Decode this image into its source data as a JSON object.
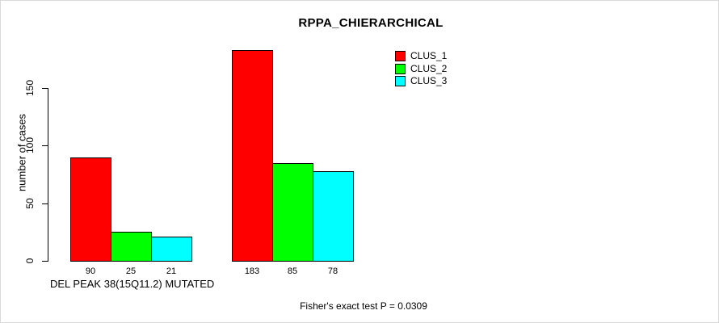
{
  "chart_data": {
    "type": "bar",
    "title": "RPPA_CHIERARCHICAL",
    "ylabel": "number of cases",
    "xlabel": "",
    "ylim": [
      0,
      150
    ],
    "yticks": [
      0,
      50,
      100,
      150
    ],
    "grid": false,
    "legend_position": "top-right",
    "categories": [
      "DEL PEAK 38(15Q11.2) MUTATED",
      ""
    ],
    "series": [
      {
        "name": "CLUS_1",
        "color": "#FF0000",
        "values": [
          90,
          183
        ]
      },
      {
        "name": "CLUS_2",
        "color": "#00FF00",
        "values": [
          25,
          85
        ]
      },
      {
        "name": "CLUS_3",
        "color": "#00FFFF",
        "values": [
          21,
          78
        ]
      }
    ],
    "bar_value_labels": [
      [
        90,
        25,
        21
      ],
      [
        183,
        85,
        78
      ]
    ],
    "annotation": "Fisher's exact test P = 0.0309"
  },
  "layout_colors": {
    "axis": "#000000",
    "background": "#ffffff"
  }
}
